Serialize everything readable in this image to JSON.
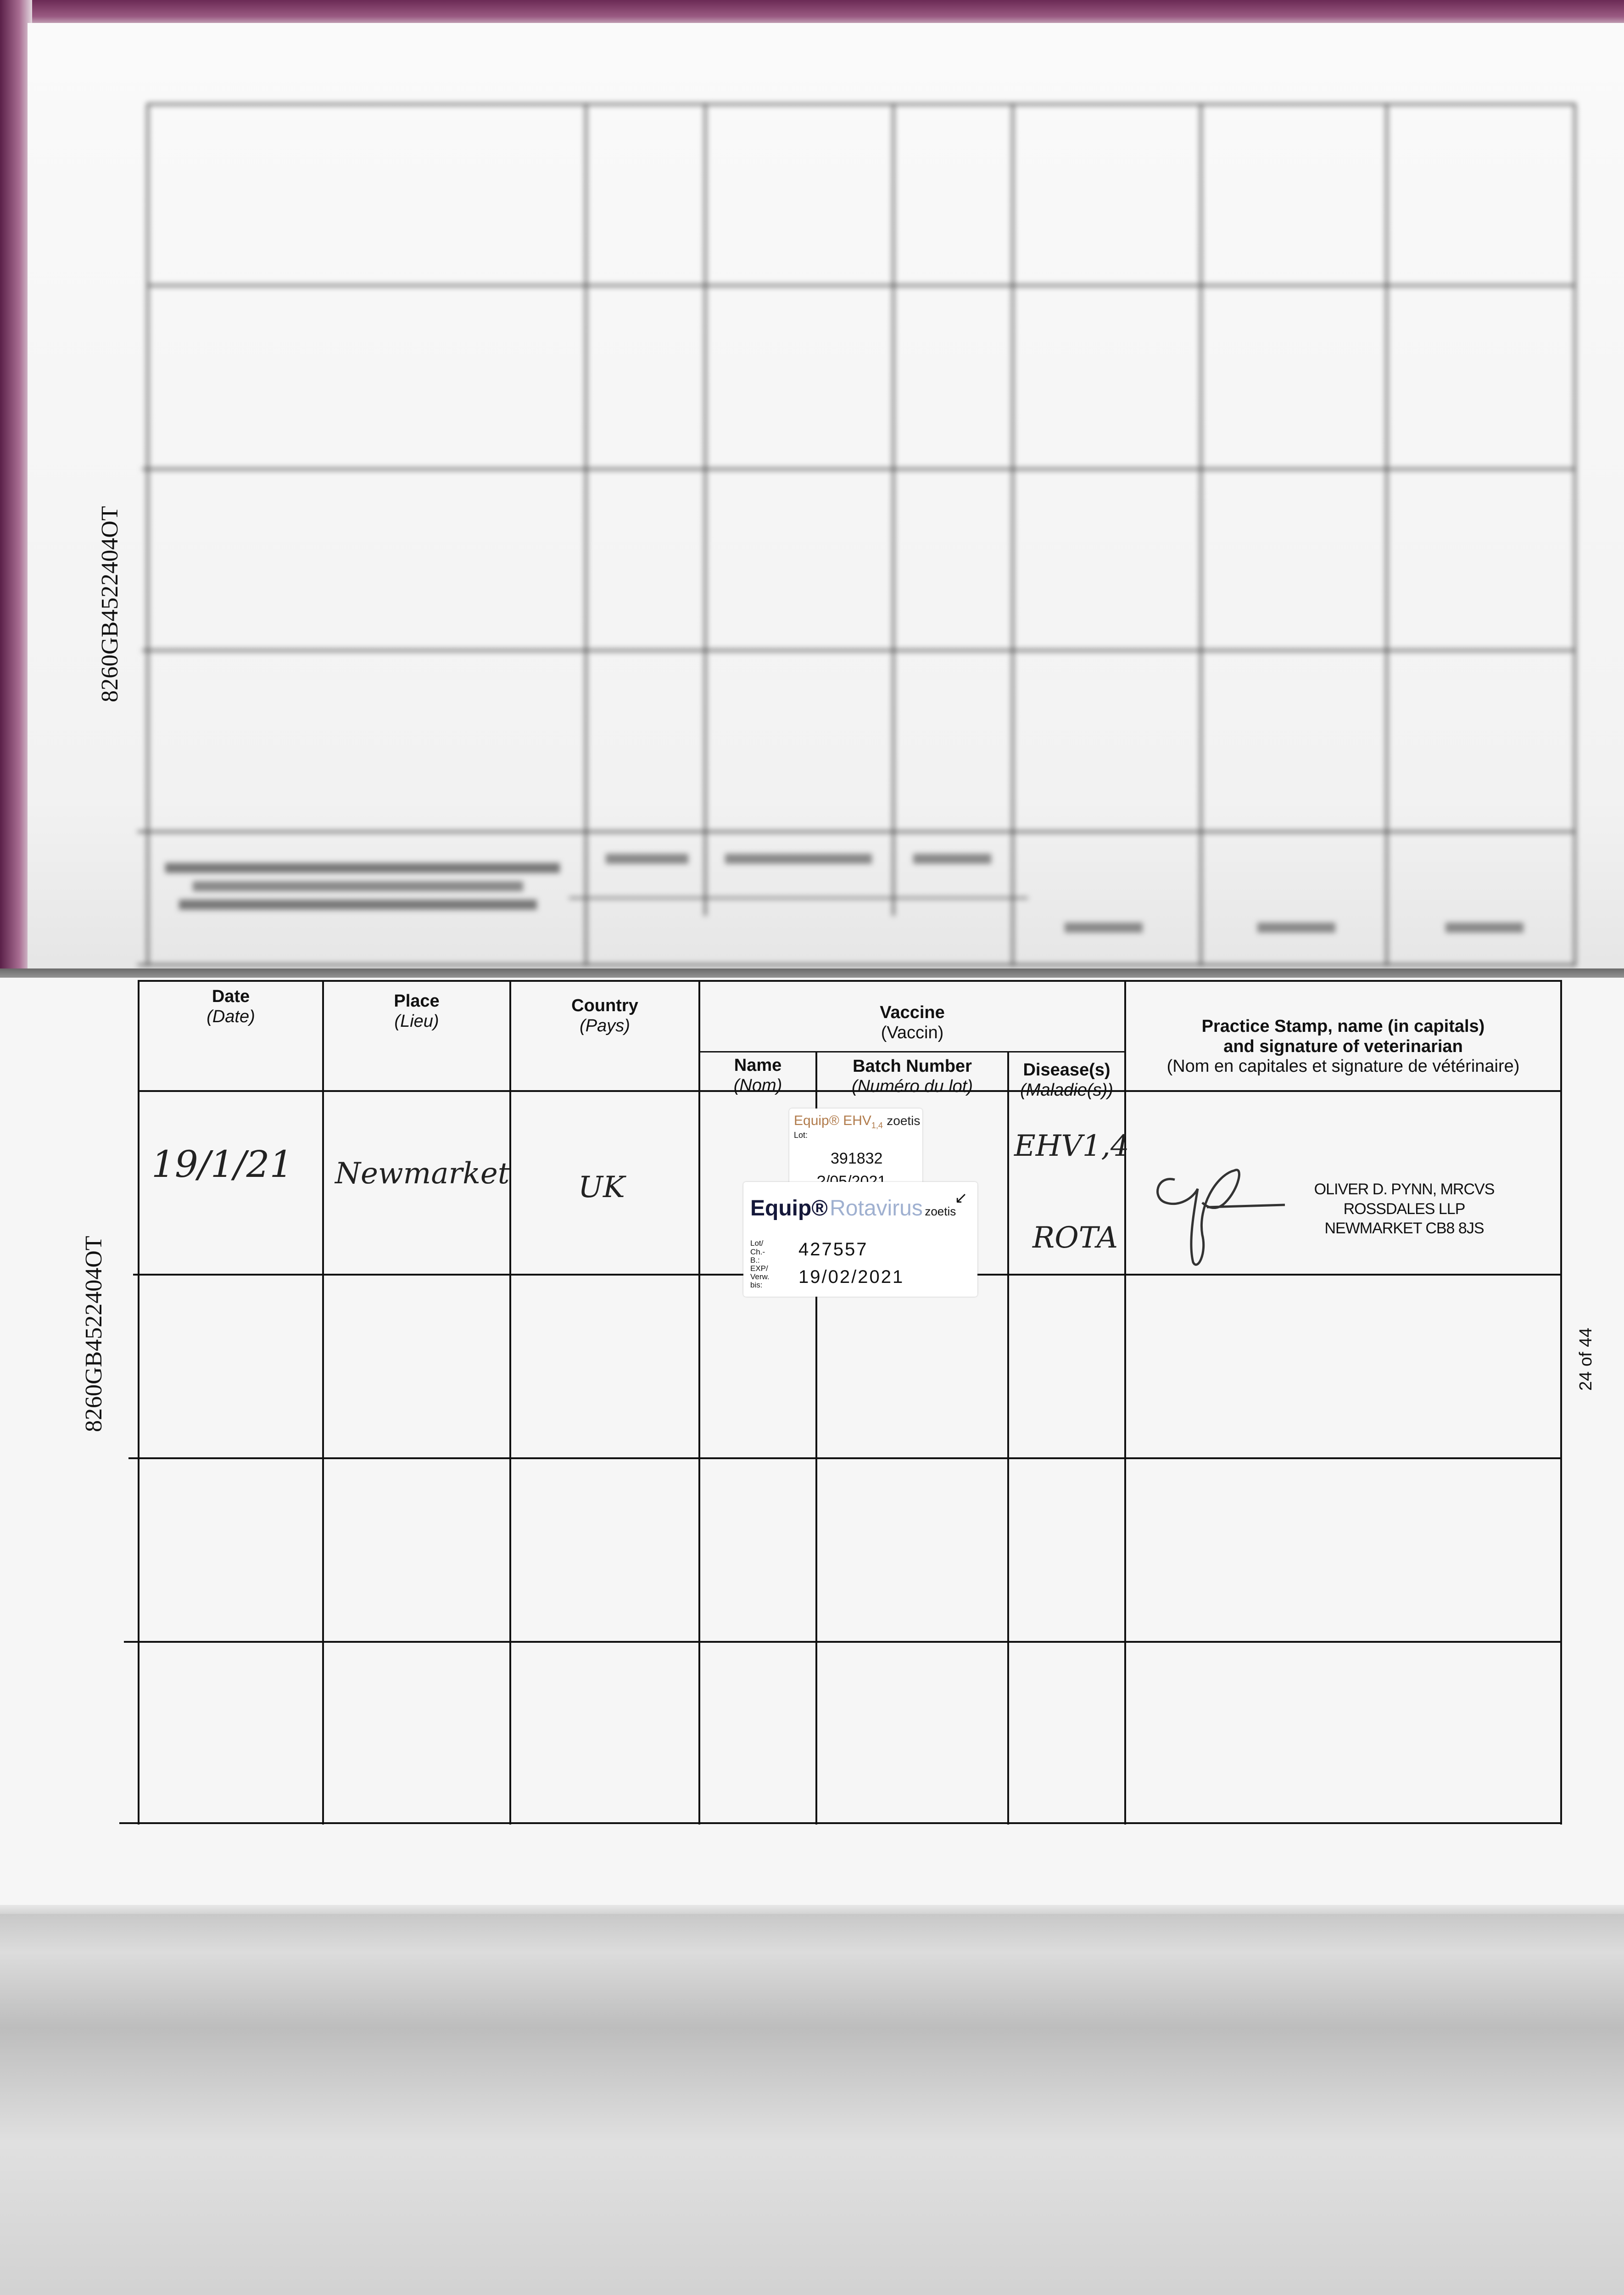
{
  "document": {
    "passport_number": "8260GB4522404OT",
    "page_number": "24 of 44"
  },
  "vaccination_table": {
    "headers": {
      "date": {
        "en": "Date",
        "fr": "(Date)"
      },
      "place": {
        "en": "Place",
        "fr": "(Lieu)"
      },
      "country": {
        "en": "Country",
        "fr": "(Pays)"
      },
      "vaccine": {
        "en": "Vaccine",
        "fr": "(Vaccin)"
      },
      "name": {
        "en": "Name",
        "fr": "(Nom)"
      },
      "batch": {
        "en": "Batch Number",
        "fr": "(Numéro du lot)"
      },
      "disease": {
        "en": "Disease(s)",
        "fr": "(Maladie(s))"
      },
      "practice": {
        "en1": "Practice Stamp, name (in capitals)",
        "en2": "and signature of veterinarian",
        "fr": "(Nom en capitales et signature de vétérinaire)"
      }
    },
    "rows": [
      {
        "date": "19/1/21",
        "place": "Newmarket",
        "country": "UK",
        "diseases": [
          "EHV1,4",
          "ROTA"
        ],
        "sticker_ehv": {
          "brand": "Equip®",
          "product": "EHV",
          "product_sub": "1,4",
          "maker": "zoetis",
          "lot_label": "Lot:",
          "lot": "391832",
          "expiry": "?/05/2021"
        },
        "sticker_rota": {
          "brand": "Equip®",
          "product": "Rotavirus",
          "maker": "zoetis",
          "lot_label": "Lot/ Ch.-B.:",
          "lot": "427557",
          "exp_label": "EXP/ Verw. bis:",
          "expiry": "19/02/2021"
        },
        "vet_stamp": [
          "OLIVER D. PYNN, MRCVS",
          "ROSSDALES LLP",
          "NEWMARKET CB8 8JS"
        ]
      },
      {},
      {},
      {}
    ]
  },
  "colors": {
    "cover": "#6b2a55",
    "rotavirus_text": "#9fb0d0",
    "ehv_text": "#b07a4a"
  }
}
